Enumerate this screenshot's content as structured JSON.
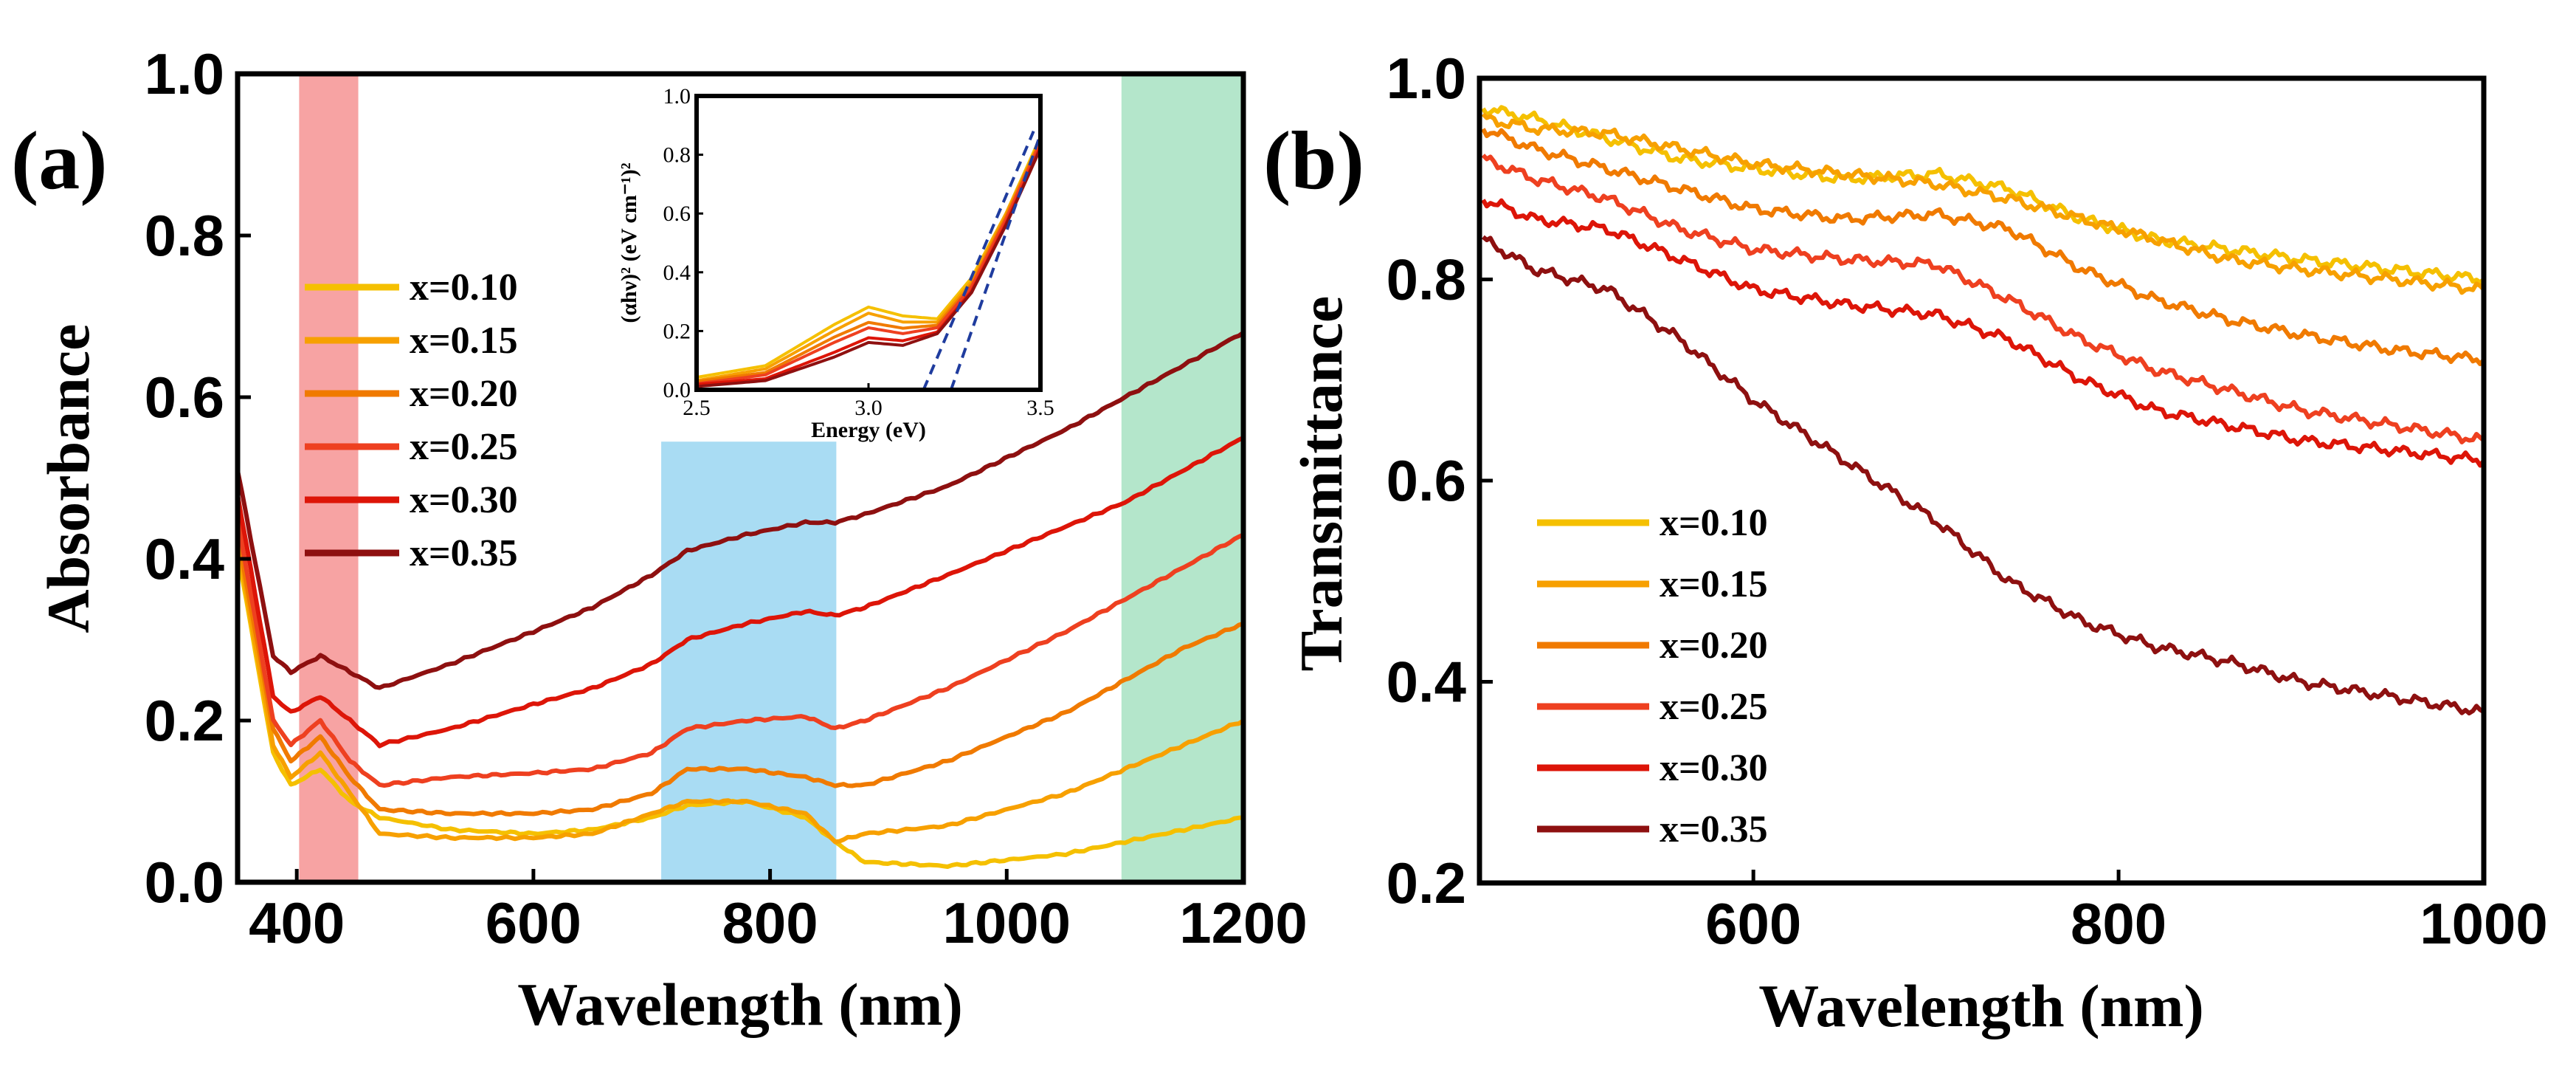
{
  "panels": [
    {
      "label": "(a)"
    },
    {
      "label": "(b)"
    },
    {
      "label": "inset"
    }
  ],
  "chart_data": [
    {
      "type": "line",
      "panel": "(a)",
      "xlabel": "Wavelength (nm)",
      "ylabel": "Absorbance",
      "xlim": [
        350,
        1200
      ],
      "ylim": [
        0.0,
        1.0
      ],
      "xticks": [
        400,
        600,
        800,
        1000,
        1200
      ],
      "yticks": [
        0.0,
        0.2,
        0.4,
        0.6,
        0.8,
        1.0
      ],
      "xtick_labels": [
        "400",
        "600",
        "800",
        "1000",
        "1200"
      ],
      "ytick_labels": [
        "0.0",
        "0.2",
        "0.4",
        "0.6",
        "0.8",
        "1.0"
      ],
      "shaded_bands": [
        {
          "x0": 402,
          "x1": 452,
          "y0": 0.0,
          "y1": 1.0,
          "color": "#f7a3a3"
        },
        {
          "x0": 708,
          "x1": 856,
          "y0": 0.0,
          "y1": 0.545,
          "color": "#a9dcf3"
        },
        {
          "x0": 1097,
          "x1": 1200,
          "y0": 0.0,
          "y1": 1.0,
          "color": "#b4e6cb"
        }
      ],
      "legend_position": "upper-left",
      "series": [
        {
          "name": "x=0.10",
          "color": "#f5c000",
          "x": [
            350,
            380,
            395,
            420,
            445,
            470,
            530,
            600,
            650,
            700,
            730,
            780,
            830,
            855,
            880,
            950,
            1050,
            1100,
            1150,
            1200
          ],
          "y": [
            0.41,
            0.16,
            0.12,
            0.14,
            0.1,
            0.08,
            0.065,
            0.06,
            0.065,
            0.08,
            0.095,
            0.1,
            0.08,
            0.05,
            0.025,
            0.02,
            0.035,
            0.05,
            0.065,
            0.08
          ]
        },
        {
          "name": "x=0.15",
          "color": "#f7a000",
          "x": [
            350,
            380,
            395,
            420,
            445,
            470,
            530,
            600,
            650,
            700,
            730,
            780,
            830,
            855,
            880,
            950,
            1050,
            1100,
            1150,
            1200
          ],
          "y": [
            0.42,
            0.17,
            0.13,
            0.16,
            0.11,
            0.06,
            0.055,
            0.055,
            0.06,
            0.085,
            0.1,
            0.1,
            0.085,
            0.05,
            0.06,
            0.07,
            0.11,
            0.14,
            0.17,
            0.2
          ]
        },
        {
          "name": "x=0.20",
          "color": "#f07a00",
          "x": [
            350,
            380,
            395,
            420,
            445,
            470,
            530,
            600,
            650,
            700,
            730,
            780,
            830,
            855,
            880,
            950,
            1050,
            1100,
            1150,
            1200
          ],
          "y": [
            0.43,
            0.19,
            0.15,
            0.18,
            0.13,
            0.09,
            0.085,
            0.085,
            0.09,
            0.11,
            0.14,
            0.14,
            0.13,
            0.12,
            0.12,
            0.15,
            0.21,
            0.25,
            0.29,
            0.32
          ]
        },
        {
          "name": "x=0.25",
          "color": "#ee4020",
          "x": [
            350,
            380,
            395,
            420,
            445,
            470,
            530,
            600,
            650,
            700,
            730,
            780,
            830,
            855,
            880,
            950,
            1050,
            1100,
            1150,
            1200
          ],
          "y": [
            0.45,
            0.2,
            0.17,
            0.2,
            0.15,
            0.12,
            0.13,
            0.135,
            0.14,
            0.16,
            0.19,
            0.2,
            0.205,
            0.19,
            0.2,
            0.24,
            0.31,
            0.35,
            0.39,
            0.43
          ]
        },
        {
          "name": "x=0.30",
          "color": "#dd1508",
          "x": [
            350,
            380,
            395,
            420,
            445,
            470,
            530,
            600,
            650,
            700,
            730,
            780,
            830,
            855,
            880,
            950,
            1050,
            1100,
            1150,
            1200
          ],
          "y": [
            0.48,
            0.23,
            0.21,
            0.23,
            0.2,
            0.17,
            0.19,
            0.22,
            0.24,
            0.27,
            0.3,
            0.32,
            0.335,
            0.33,
            0.34,
            0.38,
            0.44,
            0.47,
            0.51,
            0.55
          ]
        },
        {
          "name": "x=0.35",
          "color": "#8e1010",
          "x": [
            350,
            380,
            395,
            420,
            445,
            470,
            530,
            600,
            650,
            700,
            730,
            780,
            830,
            855,
            880,
            950,
            1050,
            1100,
            1150,
            1200
          ],
          "y": [
            0.51,
            0.28,
            0.26,
            0.28,
            0.26,
            0.24,
            0.27,
            0.31,
            0.34,
            0.38,
            0.41,
            0.43,
            0.445,
            0.445,
            0.455,
            0.49,
            0.56,
            0.6,
            0.64,
            0.68
          ]
        }
      ]
    },
    {
      "type": "line",
      "panel": "inset",
      "xlabel": "Energy (eV)",
      "ylabel": "(αhν)² (eV cm⁻¹)²",
      "xlim": [
        2.5,
        3.5
      ],
      "ylim": [
        0.0,
        1.0
      ],
      "xticks": [
        2.5,
        3.0,
        3.5
      ],
      "yticks": [
        0.0,
        0.2,
        0.4,
        0.6,
        0.8,
        1.0
      ],
      "xtick_labels": [
        "2.5",
        "3.0",
        "3.5"
      ],
      "ytick_labels": [
        "0.0",
        "0.2",
        "0.4",
        "0.6",
        "0.8",
        "1.0"
      ],
      "series": [
        {
          "name": "x=0.10",
          "color": "#f5c000",
          "x": [
            2.5,
            2.7,
            2.9,
            3.0,
            3.1,
            3.2,
            3.3,
            3.4,
            3.5
          ],
          "y": [
            0.04,
            0.08,
            0.22,
            0.28,
            0.25,
            0.24,
            0.38,
            0.6,
            0.86
          ]
        },
        {
          "name": "x=0.15",
          "color": "#f7a000",
          "x": [
            2.5,
            2.7,
            2.9,
            3.0,
            3.1,
            3.2,
            3.3,
            3.4,
            3.5
          ],
          "y": [
            0.03,
            0.07,
            0.2,
            0.26,
            0.23,
            0.23,
            0.37,
            0.6,
            0.85
          ]
        },
        {
          "name": "x=0.20",
          "color": "#f07a00",
          "x": [
            2.5,
            2.7,
            2.9,
            3.0,
            3.1,
            3.2,
            3.3,
            3.4,
            3.5
          ],
          "y": [
            0.03,
            0.06,
            0.18,
            0.23,
            0.21,
            0.22,
            0.36,
            0.59,
            0.85
          ]
        },
        {
          "name": "x=0.25",
          "color": "#ee4020",
          "x": [
            2.5,
            2.7,
            2.9,
            3.0,
            3.1,
            3.2,
            3.3,
            3.4,
            3.5
          ],
          "y": [
            0.02,
            0.05,
            0.16,
            0.21,
            0.19,
            0.21,
            0.35,
            0.58,
            0.84
          ]
        },
        {
          "name": "x=0.30",
          "color": "#dd1508",
          "x": [
            2.5,
            2.7,
            2.9,
            3.0,
            3.1,
            3.2,
            3.3,
            3.4,
            3.5
          ],
          "y": [
            0.02,
            0.04,
            0.13,
            0.18,
            0.17,
            0.2,
            0.34,
            0.57,
            0.83
          ]
        },
        {
          "name": "x=0.35",
          "color": "#8e1010",
          "x": [
            2.5,
            2.7,
            2.9,
            3.0,
            3.1,
            3.2,
            3.3,
            3.4,
            3.5
          ],
          "y": [
            0.01,
            0.03,
            0.11,
            0.16,
            0.15,
            0.19,
            0.33,
            0.56,
            0.82
          ]
        }
      ],
      "fit_lines": [
        {
          "color": "#1f3c9e",
          "x": [
            3.16,
            3.48
          ],
          "y": [
            0.0,
            0.88
          ]
        },
        {
          "color": "#1f3c9e",
          "x": [
            3.24,
            3.5
          ],
          "y": [
            0.0,
            0.87
          ]
        }
      ]
    },
    {
      "type": "line",
      "panel": "(b)",
      "xlabel": "Wavelength (nm)",
      "ylabel": "Transmittance",
      "xlim": [
        450,
        1000
      ],
      "ylim": [
        0.2,
        1.0
      ],
      "xticks": [
        600,
        800,
        1000
      ],
      "yticks": [
        0.2,
        0.4,
        0.6,
        0.8,
        1.0
      ],
      "xtick_labels": [
        "600",
        "800",
        "1000"
      ],
      "ytick_labels": [
        "0.2",
        "0.4",
        "0.6",
        "0.8",
        "1.0"
      ],
      "legend_position": "lower-left",
      "series": [
        {
          "name": "x=0.10",
          "color": "#f5c000",
          "x": [
            452,
            480,
            520,
            560,
            600,
            650,
            700,
            740,
            780,
            820,
            860,
            900,
            950,
            1000
          ],
          "y": [
            0.97,
            0.96,
            0.94,
            0.92,
            0.91,
            0.9,
            0.905,
            0.89,
            0.86,
            0.84,
            0.83,
            0.82,
            0.81,
            0.8
          ]
        },
        {
          "name": "x=0.15",
          "color": "#f7a000",
          "x": [
            452,
            480,
            520,
            560,
            600,
            650,
            700,
            740,
            780,
            820,
            860,
            900,
            950,
            1000
          ],
          "y": [
            0.96,
            0.95,
            0.945,
            0.93,
            0.915,
            0.905,
            0.895,
            0.88,
            0.86,
            0.84,
            0.82,
            0.81,
            0.8,
            0.79
          ]
        },
        {
          "name": "x=0.20",
          "color": "#f07a00",
          "x": [
            452,
            480,
            520,
            560,
            600,
            650,
            700,
            740,
            780,
            820,
            860,
            900,
            950,
            1000
          ],
          "y": [
            0.95,
            0.93,
            0.91,
            0.89,
            0.87,
            0.86,
            0.865,
            0.85,
            0.81,
            0.78,
            0.76,
            0.745,
            0.73,
            0.72
          ]
        },
        {
          "name": "x=0.25",
          "color": "#ee4020",
          "x": [
            452,
            480,
            520,
            560,
            600,
            650,
            700,
            740,
            780,
            820,
            860,
            900,
            950,
            1000
          ],
          "y": [
            0.92,
            0.9,
            0.88,
            0.85,
            0.83,
            0.82,
            0.815,
            0.78,
            0.74,
            0.71,
            0.69,
            0.67,
            0.655,
            0.64
          ]
        },
        {
          "name": "x=0.30",
          "color": "#dd1508",
          "x": [
            452,
            480,
            520,
            560,
            600,
            650,
            700,
            740,
            780,
            820,
            860,
            900,
            950,
            1000
          ],
          "y": [
            0.88,
            0.86,
            0.85,
            0.82,
            0.79,
            0.775,
            0.765,
            0.74,
            0.7,
            0.67,
            0.655,
            0.64,
            0.63,
            0.62
          ]
        },
        {
          "name": "x=0.35",
          "color": "#8e1010",
          "x": [
            452,
            480,
            520,
            560,
            600,
            650,
            700,
            740,
            780,
            820,
            860,
            900,
            950,
            1000
          ],
          "y": [
            0.84,
            0.81,
            0.79,
            0.74,
            0.68,
            0.62,
            0.56,
            0.5,
            0.46,
            0.435,
            0.42,
            0.4,
            0.385,
            0.37
          ]
        }
      ]
    }
  ]
}
